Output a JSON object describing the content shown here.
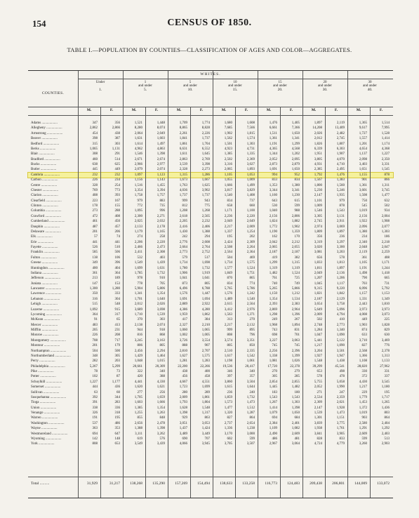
{
  "page_number": "154",
  "header": "CENSUS OF 1850.",
  "table_title": "TABLE I.—POPULATION BY COUNTIES—CLASSIFICATION OF AGES AND COLOR—AGGREGATES.",
  "section_label": "WHITES.",
  "counties_label": "COUNTIES.",
  "age_groups": [
    {
      "l1": "Under",
      "l2": "",
      "l3": "1."
    },
    {
      "l1": "1",
      "l2": "and under",
      "l3": "5."
    },
    {
      "l1": "5",
      "l2": "and under",
      "l3": "10."
    },
    {
      "l1": "10",
      "l2": "and under",
      "l3": "15."
    },
    {
      "l1": "15",
      "l2": "and under",
      "l3": "20."
    },
    {
      "l1": "20",
      "l2": "and under",
      "l3": "30."
    },
    {
      "l1": "30",
      "l2": "and under",
      "l3": "40."
    }
  ],
  "sex_labels": {
    "male": "M.",
    "female": "F."
  },
  "highlight_county": "Cambria",
  "rows": [
    {
      "name": "Adams",
      "v": [
        "347",
        "356",
        "1,521",
        "1,448",
        "1,709",
        "1,774",
        "1,680",
        "1,608",
        "1,476",
        "1,405",
        "1,897",
        "2,119",
        "1,365",
        "1,514"
      ]
    },
    {
      "name": "Allegheny",
      "v": [
        "2,862",
        "2,866",
        "8,280",
        "8,074",
        "8,865",
        "8,828",
        "7,685",
        "7,566",
        "6,661",
        "7,366",
        "14,208",
        "13,409",
        "9,617",
        "7,995"
      ]
    },
    {
      "name": "Armstrong",
      "v": [
        "454",
        "438",
        "2,064",
        "2,049",
        "2,261",
        "2,226",
        "1,902",
        "1,815",
        "1,511",
        "1,650",
        "2,026",
        "2,482",
        "1,727",
        "1,528"
      ]
    },
    {
      "name": "Beaver",
      "v": [
        "398",
        "387",
        "1,631",
        "1,603",
        "1,841",
        "1,737",
        "1,562",
        "1,574",
        "1,361",
        "1,341",
        "2,012",
        "2,745",
        "1,557",
        "1,414"
      ]
    },
    {
      "name": "Bedford",
      "v": [
        "315",
        "303",
        "1,614",
        "1,497",
        "1,861",
        "1,704",
        "1,501",
        "1,303",
        "1,191",
        "1,299",
        "1,826",
        "1,807",
        "1,201",
        "1,174"
      ]
    },
    {
      "name": "Berks",
      "v": [
        "1,065",
        "1,131",
        "4,962",
        "4,863",
        "6,631",
        "6,552",
        "4,923",
        "4,731",
        "4,365",
        "4,568",
        "6,339",
        "6,303",
        "4,654",
        "4,368"
      ]
    },
    {
      "name": "Blair",
      "v": [
        "308",
        "291",
        "1,546",
        "1,398",
        "1,611",
        "1,645",
        "1,385",
        "1,335",
        "1,344",
        "1,202",
        "1,951",
        "1,907",
        "1,137",
        "1,227"
      ]
    },
    {
      "name": "Bradford",
      "v": [
        "460",
        "514",
        "2,671",
        "2,674",
        "2,863",
        "2,769",
        "2,502",
        "2,369",
        "2,052",
        "2,095",
        "3,805",
        "4,070",
        "2,098",
        "2,350"
      ]
    },
    {
      "name": "Bucks",
      "v": [
        "638",
        "625",
        "2,966",
        "2,977",
        "3,539",
        "3,398",
        "3,316",
        "3,027",
        "2,873",
        "2,879",
        "4,931",
        "4,710",
        "3,403",
        "3,331"
      ]
    },
    {
      "name": "Butler",
      "v": [
        "445",
        "449",
        "2,079",
        "2,074",
        "2,328",
        "2,273",
        "2,065",
        "1,893",
        "1,691",
        "1,650",
        "2,385",
        "2,495",
        "1,651",
        "1,545"
      ]
    },
    {
      "name": "Cambria",
      "v": [
        "232",
        "232",
        "1,097",
        "1,123",
        "1,315",
        "1,286",
        "1,105",
        "1,053",
        "994",
        "952",
        "1,792",
        "1,476",
        "1,155",
        "878"
      ]
    },
    {
      "name": "Carbon",
      "v": [
        "226",
        "234",
        "1,156",
        "1,143",
        "1,673",
        "1,667",
        "1,055",
        "1,009",
        "833",
        "834",
        "1,567",
        "1,383",
        "901",
        "866"
      ]
    },
    {
      "name": "Centre",
      "v": [
        "328",
        "254",
        "1,516",
        "1,455",
        "1,763",
        "1,625",
        "1,666",
        "1,499",
        "1,353",
        "1,380",
        "1,800",
        "1,560",
        "1,361",
        "1,311"
      ]
    },
    {
      "name": "Chester",
      "v": [
        "769",
        "773",
        "3,354",
        "3,394",
        "4,036",
        "3,902",
        "3,817",
        "3,829",
        "3,344",
        "3,341",
        "5,230",
        "5,246",
        "3,601",
        "3,745"
      ]
    },
    {
      "name": "Clarion",
      "v": [
        "408",
        "393",
        "1,758",
        "1,757",
        "1,737",
        "1,737",
        "1,540",
        "1,408",
        "1,160",
        "1,230",
        "2,147",
        "1,935",
        "1,508",
        "1,477"
      ]
    },
    {
      "name": "Clearfield",
      "v": [
        "223",
        "167",
        "979",
        "883",
        "999",
        "943",
        "834",
        "737",
        "643",
        "615",
        "1,101",
        "979",
        "750",
        "632"
      ]
    },
    {
      "name": "Clinton",
      "v": [
        "178",
        "155",
        "772",
        "735",
        "812",
        "775",
        "658",
        "660",
        "530",
        "599",
        "1,009",
        "878",
        "545",
        "502"
      ]
    },
    {
      "name": "Columbia",
      "v": [
        "273",
        "288",
        "1,095",
        "996",
        "1,208",
        "1,268",
        "1,171",
        "1,100",
        "1,040",
        "988",
        "1,546",
        "1,543",
        "1,019",
        "934"
      ]
    },
    {
      "name": "Crawford",
      "v": [
        "472",
        "408",
        "2,300",
        "2,271",
        "2,618",
        "2,565",
        "2,236",
        "2,220",
        "2,156",
        "2,806",
        "3,305",
        "3,131",
        "2,156",
        "2,004"
      ]
    },
    {
      "name": "Cumberland",
      "v": [
        "461",
        "450",
        "2,025",
        "2,032",
        "2,205",
        "2,232",
        "2,049",
        "2,049",
        "1,824",
        "1,882",
        "2,745",
        "2,911",
        "1,922",
        "1,908"
      ]
    },
    {
      "name": "Dauphin",
      "v": [
        "487",
        "457",
        "2,133",
        "2,178",
        "2,416",
        "2,406",
        "2,217",
        "2,009",
        "1,772",
        "1,902",
        "2,974",
        "3,069",
        "2,096",
        "2,077"
      ]
    },
    {
      "name": "Delaware",
      "v": [
        "201",
        "206",
        "1,179",
        "1,165",
        "1,430",
        "1,388",
        "1,337",
        "1,254",
        "1,190",
        "1,359",
        "1,809",
        "1,897",
        "1,380",
        "1,303"
      ]
    },
    {
      "name": "Elk",
      "v": [
        "57",
        "74",
        "274",
        "258",
        "242",
        "294",
        "195",
        "202",
        "162",
        "170",
        "356",
        "236",
        "234",
        "186"
      ]
    },
    {
      "name": "Erie",
      "v": [
        "441",
        "441",
        "2,206",
        "2,220",
        "2,776",
        "2,608",
        "2,424",
        "2,309",
        "2,042",
        "2,212",
        "3,319",
        "3,297",
        "2,340",
        "2,218"
      ]
    },
    {
      "name": "Fayette",
      "v": [
        "526",
        "510",
        "2,466",
        "2,473",
        "2,664",
        "2,764",
        "2,508",
        "2,264",
        "2,065",
        "2,055",
        "3,020",
        "3,300",
        "2,048",
        "2,047"
      ]
    },
    {
      "name": "Franklin",
      "v": [
        "585",
        "506",
        "2,411",
        "2,308",
        "2,773",
        "2,752",
        "2,564",
        "2,364",
        "2,187",
        "2,187",
        "3,081",
        "3,203",
        "2,119",
        "2,259"
      ]
    },
    {
      "name": "Fulton",
      "v": [
        "138",
        "106",
        "532",
        "403",
        "579",
        "517",
        "504",
        "469",
        "419",
        "382",
        "656",
        "578",
        "361",
        "408"
      ]
    },
    {
      "name": "Greene",
      "v": [
        "349",
        "396",
        "1,549",
        "1,439",
        "1,734",
        "1,698",
        "1,734",
        "1,575",
        "1,299",
        "1,315",
        "1,833",
        "1,813",
        "1,105",
        "1,171"
      ]
    },
    {
      "name": "Huntingdon",
      "v": [
        "400",
        "404",
        "1,699",
        "1,631",
        "1,780",
        "1,732",
        "1,577",
        "1,524",
        "1,319",
        "1,319",
        "1,811",
        "1,897",
        "1,191",
        "1,244"
      ]
    },
    {
      "name": "Indiana",
      "v": [
        "361",
        "364",
        "1,785",
        "1,732",
        "1,906",
        "1,919",
        "1,849",
        "1,751",
        "1,482",
        "1,524",
        "2,049",
        "2,136",
        "1,498",
        "1,418"
      ]
    },
    {
      "name": "Jefferson",
      "v": [
        "213",
        "189",
        "978",
        "910",
        "1,041",
        "1,041",
        "870",
        "865",
        "761",
        "725",
        "1,207",
        "1,206",
        "790",
        "665"
      ]
    },
    {
      "name": "Juniata",
      "v": [
        "147",
        "153",
        "778",
        "705",
        "873",
        "805",
        "834",
        "774",
        "740",
        "749",
        "1,045",
        "1,117",
        "703",
        "731"
      ]
    },
    {
      "name": "Lancaster",
      "v": [
        "1,300",
        "1,280",
        "5,904",
        "5,806",
        "6,496",
        "6,788",
        "5,765",
        "5,786",
        "5,265",
        "5,866",
        "9,315",
        "9,220",
        "6,096",
        "5,792"
      ]
    },
    {
      "name": "Lawrence",
      "v": [
        "350",
        "333",
        "1,341",
        "1,354",
        "1,576",
        "1,447",
        "1,576",
        "1,242",
        "1,150",
        "1,212",
        "1,821",
        "1,842",
        "1,157",
        "1,153"
      ]
    },
    {
      "name": "Lebanon",
      "v": [
        "316",
        "304",
        "1,701",
        "1,640",
        "1,691",
        "1,694",
        "1,489",
        "1,540",
        "1,354",
        "1,534",
        "2,187",
        "2,129",
        "1,331",
        "1,349"
      ]
    },
    {
      "name": "Lehigh",
      "v": [
        "515",
        "548",
        "2,012",
        "2,026",
        "2,889",
        "2,922",
        "2,615",
        "2,564",
        "2,393",
        "2,383",
        "3,654",
        "3,758",
        "2,443",
        "1,810"
      ]
    },
    {
      "name": "Luzerne",
      "v": [
        "1,092",
        "915",
        "3,689",
        "3,698",
        "4,386",
        "4,280",
        "3,412",
        "2,976",
        "2,869",
        "2,964",
        "5,649",
        "5,096",
        "3,973",
        "3,973"
      ]
    },
    {
      "name": "Lycoming",
      "v": [
        "364",
        "317",
        "1,710",
        "1,539",
        "1,959",
        "1,862",
        "1,563",
        "1,371",
        "1,298",
        "1,396",
        "2,009",
        "4,794",
        "4,008",
        "3,073"
      ]
    },
    {
      "name": "McKean",
      "v": [
        "91",
        "65",
        "370",
        "303",
        "417",
        "384",
        "313",
        "270",
        "249",
        "267",
        "502",
        "410",
        "449",
        "225"
      ]
    },
    {
      "name": "Mercer",
      "v": [
        "483",
        "413",
        "2,138",
        "2,074",
        "2,327",
        "2,210",
        "2,217",
        "2,132",
        "1,968",
        "1,894",
        "2,748",
        "2,773",
        "1,903",
        "1,828"
      ]
    },
    {
      "name": "Mifflin",
      "v": [
        "205",
        "231",
        "944",
        "918",
        "1,060",
        "1,065",
        "999",
        "895",
        "743",
        "831",
        "1,284",
        "1,340",
        "874",
        "829"
      ]
    },
    {
      "name": "Monroe",
      "v": [
        "226",
        "208",
        "816",
        "868",
        "1,002",
        "1,005",
        "808",
        "796",
        "698",
        "701",
        "1,047",
        "1,090",
        "633",
        "630"
      ]
    },
    {
      "name": "Montgomery",
      "v": [
        "708",
        "717",
        "3,245",
        "3,163",
        "3,726",
        "3,554",
        "3,574",
        "3,351",
        "3,227",
        "3,063",
        "5,441",
        "5,122",
        "3,710",
        "3,469"
      ]
    },
    {
      "name": "Montour",
      "v": [
        "201",
        "179",
        "806",
        "805",
        "888",
        "907",
        "805",
        "850",
        "745",
        "745",
        "1,217",
        "1,090",
        "827",
        "776"
      ]
    },
    {
      "name": "Northampton",
      "v": [
        "504",
        "500",
        "2,456",
        "2,294",
        "2,810",
        "2,707",
        "2,510",
        "2,335",
        "2,256",
        "2,396",
        "3,204",
        "3,501",
        "2,568",
        "2,378"
      ]
    },
    {
      "name": "Northumberland",
      "v": [
        "348",
        "305",
        "1,429",
        "1,464",
        "1,627",
        "1,575",
        "1,617",
        "1,542",
        "1,338",
        "1,399",
        "1,927",
        "1,947",
        "1,366",
        "1,313"
      ]
    },
    {
      "name": "Perry",
      "v": [
        "282",
        "203",
        "1,048",
        "1,015",
        "1,281",
        "1,283",
        "1,198",
        "1,061",
        "1,081",
        "1,026",
        "1,548",
        "1,438",
        "1,108",
        "1,133"
      ]
    },
    {
      "name": "Philadelphia",
      "v": [
        "5,267",
        "5,299",
        "20,661",
        "20,309",
        "22,200",
        "22,266",
        "19,536",
        "20,417",
        "17,720",
        "22,378",
        "39,299",
        "45,541",
        "28,820",
        "27,962"
      ]
    },
    {
      "name": "Pike",
      "v": [
        "78",
        "73",
        "322",
        "340",
        "438",
        "400",
        "346",
        "340",
        "270",
        "279",
        "653",
        "498",
        "330",
        "331"
      ]
    },
    {
      "name": "Potter",
      "v": [
        "102",
        "87",
        "420",
        "388",
        "456",
        "458",
        "397",
        "357",
        "305",
        "285",
        "578",
        "478",
        "372",
        "337"
      ]
    },
    {
      "name": "Schuylkill",
      "v": [
        "1,227",
        "1,177",
        "4,441",
        "4,330",
        "4,667",
        "4,551",
        "3,860",
        "3,504",
        "2,854",
        "2,855",
        "5,755",
        "5,058",
        "4,430",
        "3,545"
      ]
    },
    {
      "name": "Somerset",
      "v": [
        "444",
        "436",
        "1,620",
        "1,621",
        "1,723",
        "1,699",
        "1,615",
        "1,644",
        "1,445",
        "1,482",
        "2,052",
        "1,990",
        "1,217",
        "1,180"
      ]
    },
    {
      "name": "Sullivan",
      "v": [
        "63",
        "60",
        "277",
        "256",
        "280",
        "289",
        "236",
        "240",
        "183",
        "180",
        "271",
        "247",
        "229",
        "195"
      ]
    },
    {
      "name": "Susquehanna",
      "v": [
        "392",
        "344",
        "1,705",
        "1,659",
        "2,009",
        "1,861",
        "1,859",
        "1,732",
        "1,543",
        "1,543",
        "2,534",
        "2,359",
        "1,779",
        "1,717"
      ]
    },
    {
      "name": "Tioga",
      "v": [
        "391",
        "283",
        "1,603",
        "1,666",
        "1,793",
        "1,804",
        "1,573",
        "1,473",
        "1,267",
        "1,303",
        "2,309",
        "2,021",
        "1,453",
        "1,265"
      ]
    },
    {
      "name": "Union",
      "v": [
        "338",
        "336",
        "1,385",
        "1,354",
        "1,628",
        "1,548",
        "1,477",
        "1,512",
        "1,414",
        "1,398",
        "2,147",
        "1,928",
        "1,372",
        "1,436"
      ]
    },
    {
      "name": "Venango",
      "v": [
        "326",
        "318",
        "1,255",
        "1,263",
        "1,398",
        "1,317",
        "1,320",
        "1,287",
        "1,079",
        "1,050",
        "1,539",
        "1,473",
        "1,019",
        "803"
      ]
    },
    {
      "name": "Warren",
      "v": [
        "191",
        "195",
        "855",
        "848",
        "929",
        "863",
        "827",
        "864",
        "694",
        "684",
        "1,301",
        "1,151",
        "903",
        "864"
      ]
    },
    {
      "name": "Washington",
      "v": [
        "537",
        "486",
        "2,656",
        "2,478",
        "3,051",
        "3,053",
        "2,737",
        "2,654",
        "2,384",
        "2,401",
        "3,839",
        "3,775",
        "2,580",
        "2,404"
      ]
    },
    {
      "name": "Wayne",
      "v": [
        "363",
        "353",
        "1,388",
        "1,398",
        "1,437",
        "1,424",
        "1,336",
        "1,238",
        "1,109",
        "1,082",
        "1,938",
        "1,761",
        "1,291",
        "1,292"
      ]
    },
    {
      "name": "Westmoreland",
      "v": [
        "694",
        "647",
        "3,111",
        "3,262",
        "3,489",
        "3,449",
        "3,170",
        "3,000",
        "2,490",
        "2,609",
        "3,841",
        "3,905",
        "2,609",
        "2,403"
      ]
    },
    {
      "name": "Wyoming",
      "v": [
        "142",
        "148",
        "619",
        "576",
        "690",
        "707",
        "602",
        "599",
        "486",
        "481",
        "828",
        "833",
        "599",
        "513"
      ]
    },
    {
      "name": "York",
      "v": [
        "808",
        "653",
        "3,549",
        "3,439",
        "4,066",
        "3,945",
        "3,705",
        "3,507",
        "2,967",
        "3,064",
        "4,724",
        "4,779",
        "3,260",
        "2,903"
      ]
    }
  ],
  "total": {
    "label": "Total",
    "v": [
      "31,929",
      "31,217",
      "138,268",
      "135,290",
      "157,269",
      "154,494",
      "138,633",
      "133,258",
      "116,773",
      "124,483",
      "209,438",
      "206,801",
      "144,009",
      "133,072"
    ]
  }
}
